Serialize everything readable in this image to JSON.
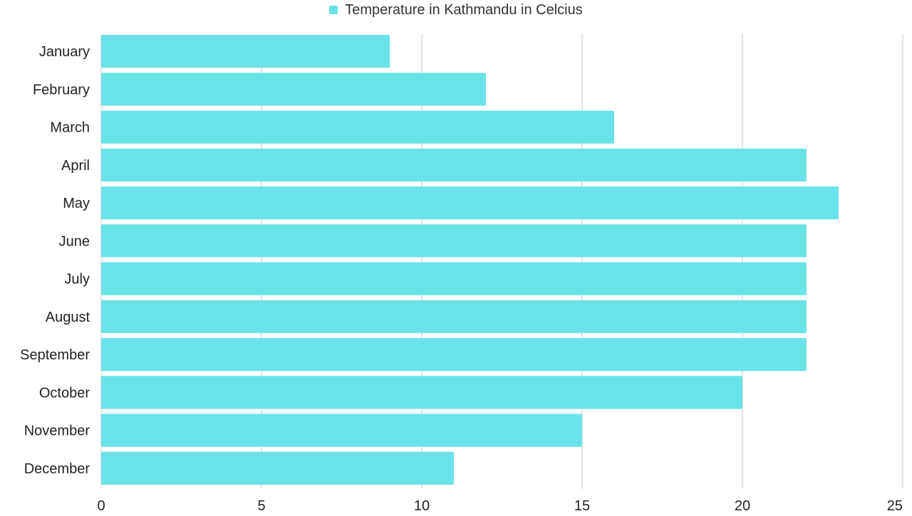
{
  "colors": {
    "bar": "#6ae3e8",
    "grid": "#c8c8c8",
    "text": "#222222"
  },
  "chart_data": {
    "type": "bar",
    "orientation": "horizontal",
    "categories": [
      "January",
      "February",
      "March",
      "April",
      "May",
      "June",
      "July",
      "August",
      "September",
      "October",
      "November",
      "December"
    ],
    "series": [
      {
        "name": "Temperature in Kathmandu in Celcius",
        "values": [
          9,
          12,
          16,
          22,
          23,
          22,
          22,
          22,
          22,
          20,
          15,
          11
        ]
      }
    ],
    "xlim": [
      0,
      25
    ],
    "xticks": [
      "0",
      "5",
      "10",
      "15",
      "20",
      "25"
    ],
    "grid": true,
    "legend_position": "top-center"
  }
}
